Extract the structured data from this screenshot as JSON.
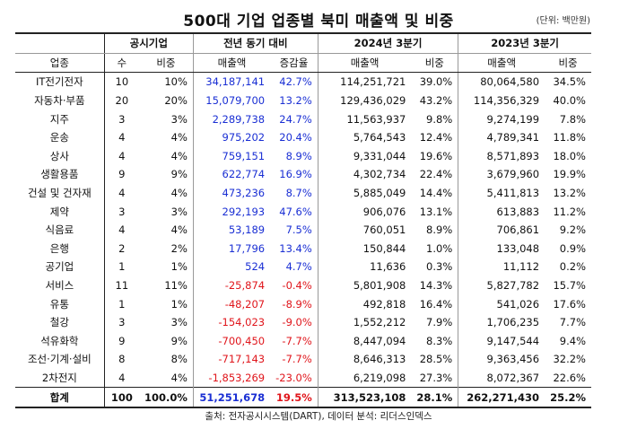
{
  "title": "500대 기업 업종별 북미 매출액 및 비중",
  "unit": "(단위: 백만원)",
  "headers": {
    "industry": "업종",
    "group_disclosed": "공시기업",
    "group_yoy": "전년 동기 대비",
    "group_2024": "2024년 3분기",
    "group_2023": "2023년 3분기",
    "count": "수",
    "ratio": "비중",
    "sales": "매출액",
    "change_rate": "증감율"
  },
  "rows": [
    {
      "industry": "IT전기전자",
      "count": "10",
      "ratio": "10%",
      "diff": "34,187,141",
      "rate": "42.7%",
      "sales24": "114,251,721",
      "share24": "39.0%",
      "sales23": "80,064,580",
      "share23": "34.5%",
      "sign": "pos"
    },
    {
      "industry": "자동차·부품",
      "count": "20",
      "ratio": "20%",
      "diff": "15,079,700",
      "rate": "13.2%",
      "sales24": "129,436,029",
      "share24": "43.2%",
      "sales23": "114,356,329",
      "share23": "40.0%",
      "sign": "pos"
    },
    {
      "industry": "지주",
      "count": "3",
      "ratio": "3%",
      "diff": "2,289,738",
      "rate": "24.7%",
      "sales24": "11,563,937",
      "share24": "9.8%",
      "sales23": "9,274,199",
      "share23": "7.8%",
      "sign": "pos"
    },
    {
      "industry": "운송",
      "count": "4",
      "ratio": "4%",
      "diff": "975,202",
      "rate": "20.4%",
      "sales24": "5,764,543",
      "share24": "12.4%",
      "sales23": "4,789,341",
      "share23": "11.8%",
      "sign": "pos"
    },
    {
      "industry": "상사",
      "count": "4",
      "ratio": "4%",
      "diff": "759,151",
      "rate": "8.9%",
      "sales24": "9,331,044",
      "share24": "19.6%",
      "sales23": "8,571,893",
      "share23": "18.0%",
      "sign": "pos"
    },
    {
      "industry": "생활용품",
      "count": "9",
      "ratio": "9%",
      "diff": "622,774",
      "rate": "16.9%",
      "sales24": "4,302,734",
      "share24": "22.4%",
      "sales23": "3,679,960",
      "share23": "19.9%",
      "sign": "pos"
    },
    {
      "industry": "건설 및 건자재",
      "count": "4",
      "ratio": "4%",
      "diff": "473,236",
      "rate": "8.7%",
      "sales24": "5,885,049",
      "share24": "14.4%",
      "sales23": "5,411,813",
      "share23": "13.2%",
      "sign": "pos"
    },
    {
      "industry": "제약",
      "count": "3",
      "ratio": "3%",
      "diff": "292,193",
      "rate": "47.6%",
      "sales24": "906,076",
      "share24": "13.1%",
      "sales23": "613,883",
      "share23": "11.2%",
      "sign": "pos"
    },
    {
      "industry": "식음료",
      "count": "4",
      "ratio": "4%",
      "diff": "53,189",
      "rate": "7.5%",
      "sales24": "760,051",
      "share24": "8.9%",
      "sales23": "706,861",
      "share23": "9.2%",
      "sign": "pos"
    },
    {
      "industry": "은행",
      "count": "2",
      "ratio": "2%",
      "diff": "17,796",
      "rate": "13.4%",
      "sales24": "150,844",
      "share24": "1.0%",
      "sales23": "133,048",
      "share23": "0.9%",
      "sign": "pos"
    },
    {
      "industry": "공기업",
      "count": "1",
      "ratio": "1%",
      "diff": "524",
      "rate": "4.7%",
      "sales24": "11,636",
      "share24": "0.3%",
      "sales23": "11,112",
      "share23": "0.2%",
      "sign": "pos"
    },
    {
      "industry": "서비스",
      "count": "11",
      "ratio": "11%",
      "diff": "-25,874",
      "rate": "-0.4%",
      "sales24": "5,801,908",
      "share24": "14.3%",
      "sales23": "5,827,782",
      "share23": "15.7%",
      "sign": "neg"
    },
    {
      "industry": "유통",
      "count": "1",
      "ratio": "1%",
      "diff": "-48,207",
      "rate": "-8.9%",
      "sales24": "492,818",
      "share24": "16.4%",
      "sales23": "541,026",
      "share23": "17.6%",
      "sign": "neg"
    },
    {
      "industry": "철강",
      "count": "3",
      "ratio": "3%",
      "diff": "-154,023",
      "rate": "-9.0%",
      "sales24": "1,552,212",
      "share24": "7.9%",
      "sales23": "1,706,235",
      "share23": "7.7%",
      "sign": "neg"
    },
    {
      "industry": "석유화학",
      "count": "9",
      "ratio": "9%",
      "diff": "-700,450",
      "rate": "-7.7%",
      "sales24": "8,447,094",
      "share24": "8.3%",
      "sales23": "9,147,544",
      "share23": "9.4%",
      "sign": "neg"
    },
    {
      "industry": "조선·기계·설비",
      "count": "8",
      "ratio": "8%",
      "diff": "-717,143",
      "rate": "-7.7%",
      "sales24": "8,646,313",
      "share24": "28.5%",
      "sales23": "9,363,456",
      "share23": "32.2%",
      "sign": "neg"
    },
    {
      "industry": "2차전지",
      "count": "4",
      "ratio": "4%",
      "diff": "-1,853,269",
      "rate": "-23.0%",
      "sales24": "6,219,098",
      "share24": "27.3%",
      "sales23": "8,072,367",
      "share23": "22.6%",
      "sign": "neg"
    }
  ],
  "total": {
    "industry": "합계",
    "count": "100",
    "ratio": "100.0%",
    "diff": "51,251,678",
    "rate": "19.5%",
    "sales24": "313,523,108",
    "share24": "28.1%",
    "sales23": "262,271,430",
    "share23": "25.2%"
  },
  "footer": "출처: 전자공시시스템(DART), 데이터 분석: 리더스인덱스",
  "colors": {
    "positive": "#1a2fd4",
    "negative": "#e0151b"
  }
}
